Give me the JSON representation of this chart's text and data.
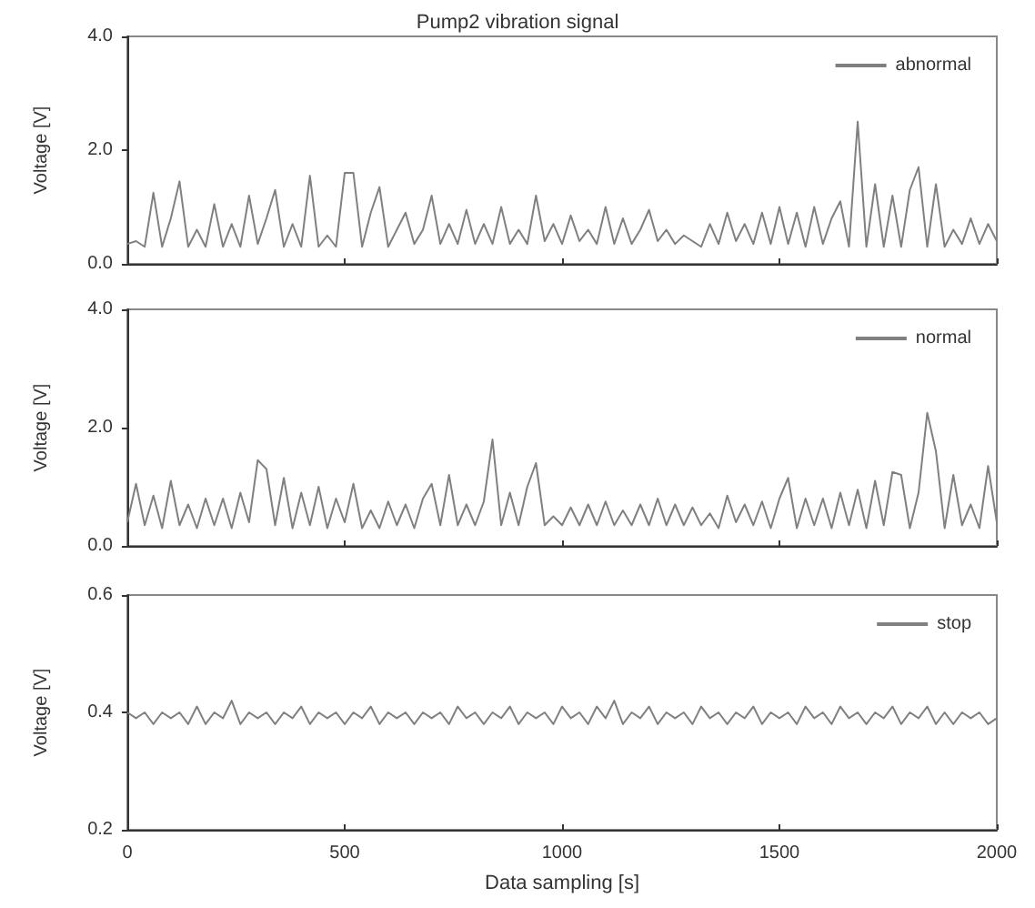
{
  "chart_data": [
    {
      "type": "line",
      "title": "Pump2 vibration signal",
      "ylabel": "Voltage [V]",
      "legend": "top right",
      "tick_labels": "y",
      "xlim": [
        0,
        2000
      ],
      "xticks": [
        0,
        500,
        1000,
        1500,
        2000
      ],
      "ylim": [
        0,
        4
      ],
      "yticks": [
        {
          "value": 0,
          "label": "0.0"
        },
        {
          "value": 2,
          "label": "2.0"
        },
        {
          "value": 4,
          "label": "4.0"
        }
      ],
      "x": [
        0,
        20,
        40,
        60,
        80,
        100,
        120,
        140,
        160,
        180,
        200,
        220,
        240,
        260,
        280,
        300,
        320,
        340,
        360,
        380,
        400,
        420,
        440,
        460,
        480,
        500,
        520,
        540,
        560,
        580,
        600,
        620,
        640,
        660,
        680,
        700,
        720,
        740,
        760,
        780,
        800,
        820,
        840,
        860,
        880,
        900,
        920,
        940,
        960,
        980,
        1000,
        1020,
        1040,
        1060,
        1080,
        1100,
        1120,
        1140,
        1160,
        1180,
        1200,
        1220,
        1240,
        1260,
        1280,
        1300,
        1320,
        1340,
        1360,
        1380,
        1400,
        1420,
        1440,
        1460,
        1480,
        1500,
        1520,
        1540,
        1560,
        1580,
        1600,
        1620,
        1640,
        1660,
        1680,
        1700,
        1720,
        1740,
        1760,
        1780,
        1800,
        1820,
        1840,
        1860,
        1880,
        1900,
        1920,
        1940,
        1960,
        1980,
        2000
      ],
      "series": [
        {
          "name": "abnormal",
          "color": "#808080",
          "values": [
            0.35,
            0.4,
            0.3,
            1.25,
            0.3,
            0.8,
            1.45,
            0.3,
            0.6,
            0.3,
            1.05,
            0.3,
            0.7,
            0.3,
            1.2,
            0.35,
            0.8,
            1.3,
            0.3,
            0.7,
            0.3,
            1.55,
            0.3,
            0.5,
            0.3,
            1.6,
            1.6,
            0.3,
            0.9,
            1.35,
            0.3,
            0.6,
            0.9,
            0.35,
            0.6,
            1.2,
            0.35,
            0.7,
            0.35,
            0.95,
            0.35,
            0.7,
            0.35,
            1.0,
            0.35,
            0.6,
            0.35,
            1.2,
            0.4,
            0.7,
            0.35,
            0.85,
            0.4,
            0.6,
            0.35,
            1.0,
            0.35,
            0.8,
            0.35,
            0.6,
            0.95,
            0.4,
            0.6,
            0.35,
            0.5,
            0.4,
            0.3,
            0.7,
            0.35,
            0.9,
            0.4,
            0.7,
            0.35,
            0.9,
            0.35,
            1.0,
            0.35,
            0.9,
            0.3,
            1.0,
            0.35,
            0.8,
            1.1,
            0.3,
            2.5,
            0.3,
            1.4,
            0.3,
            1.2,
            0.3,
            1.3,
            1.7,
            0.3,
            1.4,
            0.3,
            0.6,
            0.35,
            0.8,
            0.35,
            0.7,
            0.4
          ]
        }
      ]
    },
    {
      "type": "line",
      "ylabel": "Voltage [V]",
      "legend": "top right",
      "tick_labels": "y",
      "xlim": [
        0,
        2000
      ],
      "xticks": [
        0,
        500,
        1000,
        1500,
        2000
      ],
      "ylim": [
        0,
        4
      ],
      "yticks": [
        {
          "value": 0,
          "label": "0.0"
        },
        {
          "value": 2,
          "label": "2.0"
        },
        {
          "value": 4,
          "label": "4.0"
        }
      ],
      "x": [
        0,
        20,
        40,
        60,
        80,
        100,
        120,
        140,
        160,
        180,
        200,
        220,
        240,
        260,
        280,
        300,
        320,
        340,
        360,
        380,
        400,
        420,
        440,
        460,
        480,
        500,
        520,
        540,
        560,
        580,
        600,
        620,
        640,
        660,
        680,
        700,
        720,
        740,
        760,
        780,
        800,
        820,
        840,
        860,
        880,
        900,
        920,
        940,
        960,
        980,
        1000,
        1020,
        1040,
        1060,
        1080,
        1100,
        1120,
        1140,
        1160,
        1180,
        1200,
        1220,
        1240,
        1260,
        1280,
        1300,
        1320,
        1340,
        1360,
        1380,
        1400,
        1420,
        1440,
        1460,
        1480,
        1500,
        1520,
        1540,
        1560,
        1580,
        1600,
        1620,
        1640,
        1660,
        1680,
        1700,
        1720,
        1740,
        1760,
        1780,
        1800,
        1820,
        1840,
        1860,
        1880,
        1900,
        1920,
        1940,
        1960,
        1980,
        2000
      ],
      "series": [
        {
          "name": "normal",
          "color": "#808080",
          "values": [
            0.4,
            1.05,
            0.35,
            0.85,
            0.3,
            1.1,
            0.35,
            0.7,
            0.3,
            0.8,
            0.35,
            0.8,
            0.3,
            0.9,
            0.4,
            1.45,
            1.3,
            0.35,
            1.15,
            0.3,
            0.9,
            0.35,
            1.0,
            0.3,
            0.8,
            0.4,
            1.05,
            0.3,
            0.6,
            0.3,
            0.75,
            0.35,
            0.7,
            0.3,
            0.8,
            1.05,
            0.35,
            1.2,
            0.35,
            0.7,
            0.35,
            0.75,
            1.8,
            0.35,
            0.9,
            0.35,
            1.0,
            1.4,
            0.35,
            0.5,
            0.35,
            0.65,
            0.35,
            0.7,
            0.35,
            0.75,
            0.35,
            0.6,
            0.35,
            0.7,
            0.35,
            0.8,
            0.35,
            0.7,
            0.35,
            0.65,
            0.35,
            0.55,
            0.3,
            0.85,
            0.4,
            0.7,
            0.35,
            0.75,
            0.3,
            0.8,
            1.15,
            0.3,
            0.8,
            0.35,
            0.8,
            0.3,
            0.9,
            0.35,
            0.95,
            0.3,
            1.1,
            0.35,
            1.25,
            1.2,
            0.3,
            0.9,
            2.25,
            1.6,
            0.3,
            1.2,
            0.35,
            0.7,
            0.3,
            1.35,
            0.4
          ]
        }
      ]
    },
    {
      "type": "line",
      "ylabel": "Voltage [V]",
      "xlabel": "Data sampling [s]",
      "legend": "top right",
      "xlim": [
        0,
        2000
      ],
      "xticks": [
        0,
        500,
        1000,
        1500,
        2000
      ],
      "ylim": [
        0.2,
        0.6
      ],
      "yticks": [
        0.2,
        0.4,
        0.6
      ],
      "x": [
        0,
        20,
        40,
        60,
        80,
        100,
        120,
        140,
        160,
        180,
        200,
        220,
        240,
        260,
        280,
        300,
        320,
        340,
        360,
        380,
        400,
        420,
        440,
        460,
        480,
        500,
        520,
        540,
        560,
        580,
        600,
        620,
        640,
        660,
        680,
        700,
        720,
        740,
        760,
        780,
        800,
        820,
        840,
        860,
        880,
        900,
        920,
        940,
        960,
        980,
        1000,
        1020,
        1040,
        1060,
        1080,
        1100,
        1120,
        1140,
        1160,
        1180,
        1200,
        1220,
        1240,
        1260,
        1280,
        1300,
        1320,
        1340,
        1360,
        1380,
        1400,
        1420,
        1440,
        1460,
        1480,
        1500,
        1520,
        1540,
        1560,
        1580,
        1600,
        1620,
        1640,
        1660,
        1680,
        1700,
        1720,
        1740,
        1760,
        1780,
        1800,
        1820,
        1840,
        1860,
        1880,
        1900,
        1920,
        1940,
        1960,
        1980,
        2000
      ],
      "series": [
        {
          "name": "stop",
          "color": "#808080",
          "values": [
            0.4,
            0.39,
            0.4,
            0.38,
            0.4,
            0.39,
            0.4,
            0.38,
            0.41,
            0.38,
            0.4,
            0.39,
            0.42,
            0.38,
            0.4,
            0.39,
            0.4,
            0.38,
            0.4,
            0.39,
            0.41,
            0.38,
            0.4,
            0.39,
            0.4,
            0.38,
            0.4,
            0.39,
            0.41,
            0.38,
            0.4,
            0.39,
            0.4,
            0.38,
            0.4,
            0.39,
            0.4,
            0.38,
            0.41,
            0.39,
            0.4,
            0.38,
            0.4,
            0.39,
            0.41,
            0.38,
            0.4,
            0.39,
            0.4,
            0.38,
            0.41,
            0.39,
            0.4,
            0.38,
            0.41,
            0.39,
            0.42,
            0.38,
            0.4,
            0.39,
            0.41,
            0.38,
            0.4,
            0.39,
            0.4,
            0.38,
            0.41,
            0.39,
            0.4,
            0.38,
            0.4,
            0.39,
            0.41,
            0.38,
            0.4,
            0.39,
            0.4,
            0.38,
            0.41,
            0.39,
            0.4,
            0.38,
            0.41,
            0.39,
            0.4,
            0.38,
            0.4,
            0.39,
            0.41,
            0.38,
            0.4,
            0.39,
            0.41,
            0.38,
            0.4,
            0.38,
            0.4,
            0.39,
            0.4,
            0.38,
            0.39
          ]
        }
      ]
    }
  ]
}
